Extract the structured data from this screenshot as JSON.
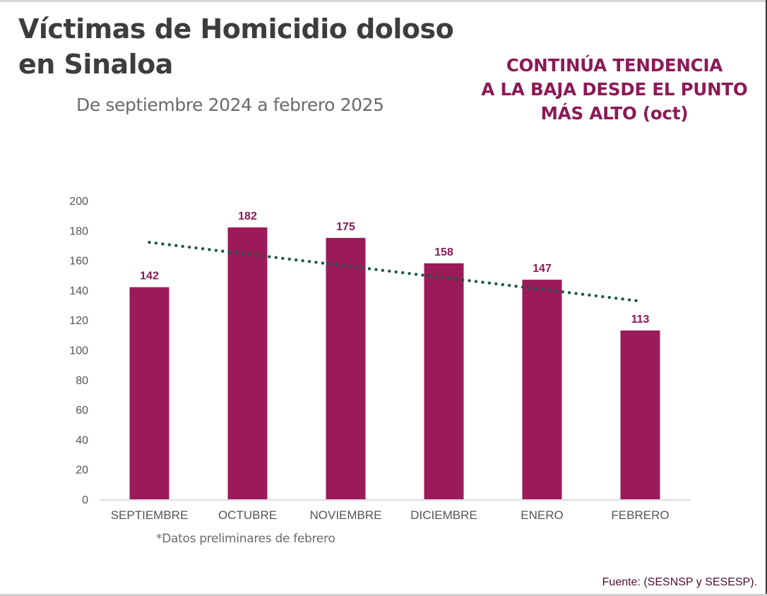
{
  "header": {
    "title_line1": "Víctimas de Homicidio doloso",
    "title_line2": "en Sinaloa",
    "subtitle": "De septiembre 2024 a febrero 2025"
  },
  "callout": {
    "lines": [
      "CONTINÚA TENDENCIA",
      "A LA BAJA DESDE EL PUNTO",
      "MÁS ALTO (oct)"
    ]
  },
  "footnote": "*Datos preliminares de febrero",
  "source": "Fuente: (SESNSP y SESESP).",
  "colors": {
    "bar": "#9b1b5a",
    "data_label": "#8b1a55",
    "trendline": "#1e5945",
    "callout": "#8b1a55"
  },
  "chart_data": {
    "type": "bar",
    "title": "Víctimas de Homicidio doloso en Sinaloa",
    "subtitle": "De septiembre 2024 a febrero 2025",
    "categories": [
      "SEPTIEMBRE",
      "OCTUBRE",
      "NOVIEMBRE",
      "DICIEMBRE",
      "ENERO",
      "FEBRERO"
    ],
    "values": [
      142,
      182,
      175,
      158,
      147,
      113
    ],
    "data_labels": [
      "142",
      "182",
      "175",
      "158",
      "147",
      "113"
    ],
    "xlabel": "",
    "ylabel": "",
    "ylim": [
      0,
      200
    ],
    "yticks": [
      0,
      20,
      40,
      60,
      80,
      100,
      120,
      140,
      160,
      180,
      200
    ],
    "grid": false,
    "legend": "none",
    "trendline": {
      "type": "linear",
      "style": "dotted",
      "start_value": 172,
      "end_value": 133
    }
  }
}
